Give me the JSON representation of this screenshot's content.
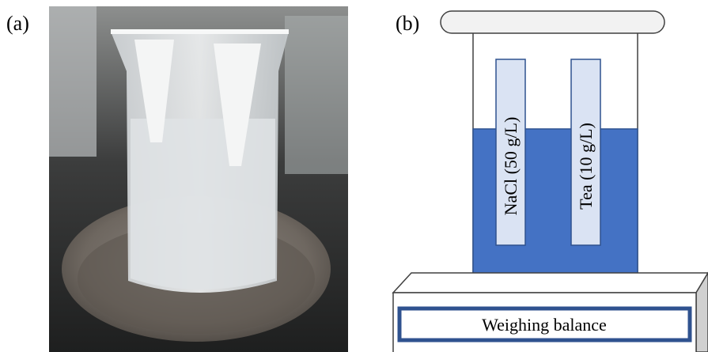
{
  "panel_a": {
    "label": "(a)"
  },
  "panel_b": {
    "label": "(b)",
    "strips": [
      "NaCl (50 g/L)",
      "Tea (10 g/L)"
    ],
    "balance_label": "Weighing balance"
  }
}
